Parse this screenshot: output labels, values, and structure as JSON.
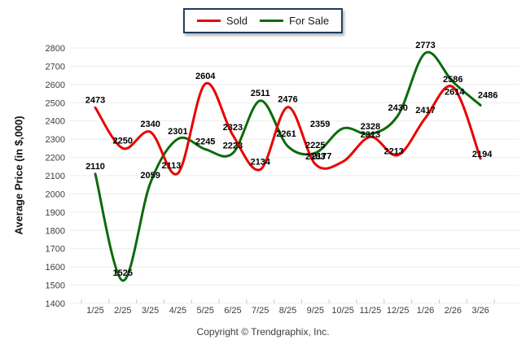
{
  "chart_data": {
    "type": "line",
    "title": "",
    "categories": [
      "1/25",
      "2/25",
      "3/25",
      "4/25",
      "5/25",
      "6/25",
      "7/25",
      "8/25",
      "9/25",
      "10/25",
      "11/25",
      "12/25",
      "1/26",
      "2/26",
      "3/26"
    ],
    "series": [
      {
        "name": "Sold",
        "color": "#e80000",
        "values": [
          2473,
          2250,
          2340,
          2113,
          2604,
          2323,
          2134,
          2476,
          2163,
          2177,
          2313,
          2213,
          2417,
          2586,
          2194
        ]
      },
      {
        "name": "For Sale",
        "color": "#0b6b0b",
        "values": [
          2110,
          1525,
          2059,
          2301,
          2245,
          2223,
          2511,
          2261,
          2225,
          2359,
          2328,
          2430,
          2773,
          2614,
          2486
        ]
      }
    ],
    "xlabel": "",
    "ylabel": "Average Price (in $,000)",
    "ylim": [
      1400,
      2800
    ],
    "ytick_step": 100,
    "grid": true,
    "legend_position": "top-center"
  },
  "footer": {
    "copyright": "Copyright © Trendgraphix, Inc."
  },
  "colors": {
    "sold": "#e80000",
    "for_sale": "#0b6b0b",
    "grid": "#ececec",
    "tick": "#c9c9c9",
    "axis_text": "#3d3d3d",
    "label_text": "#000000",
    "legend_border": "#1e3a5f"
  }
}
